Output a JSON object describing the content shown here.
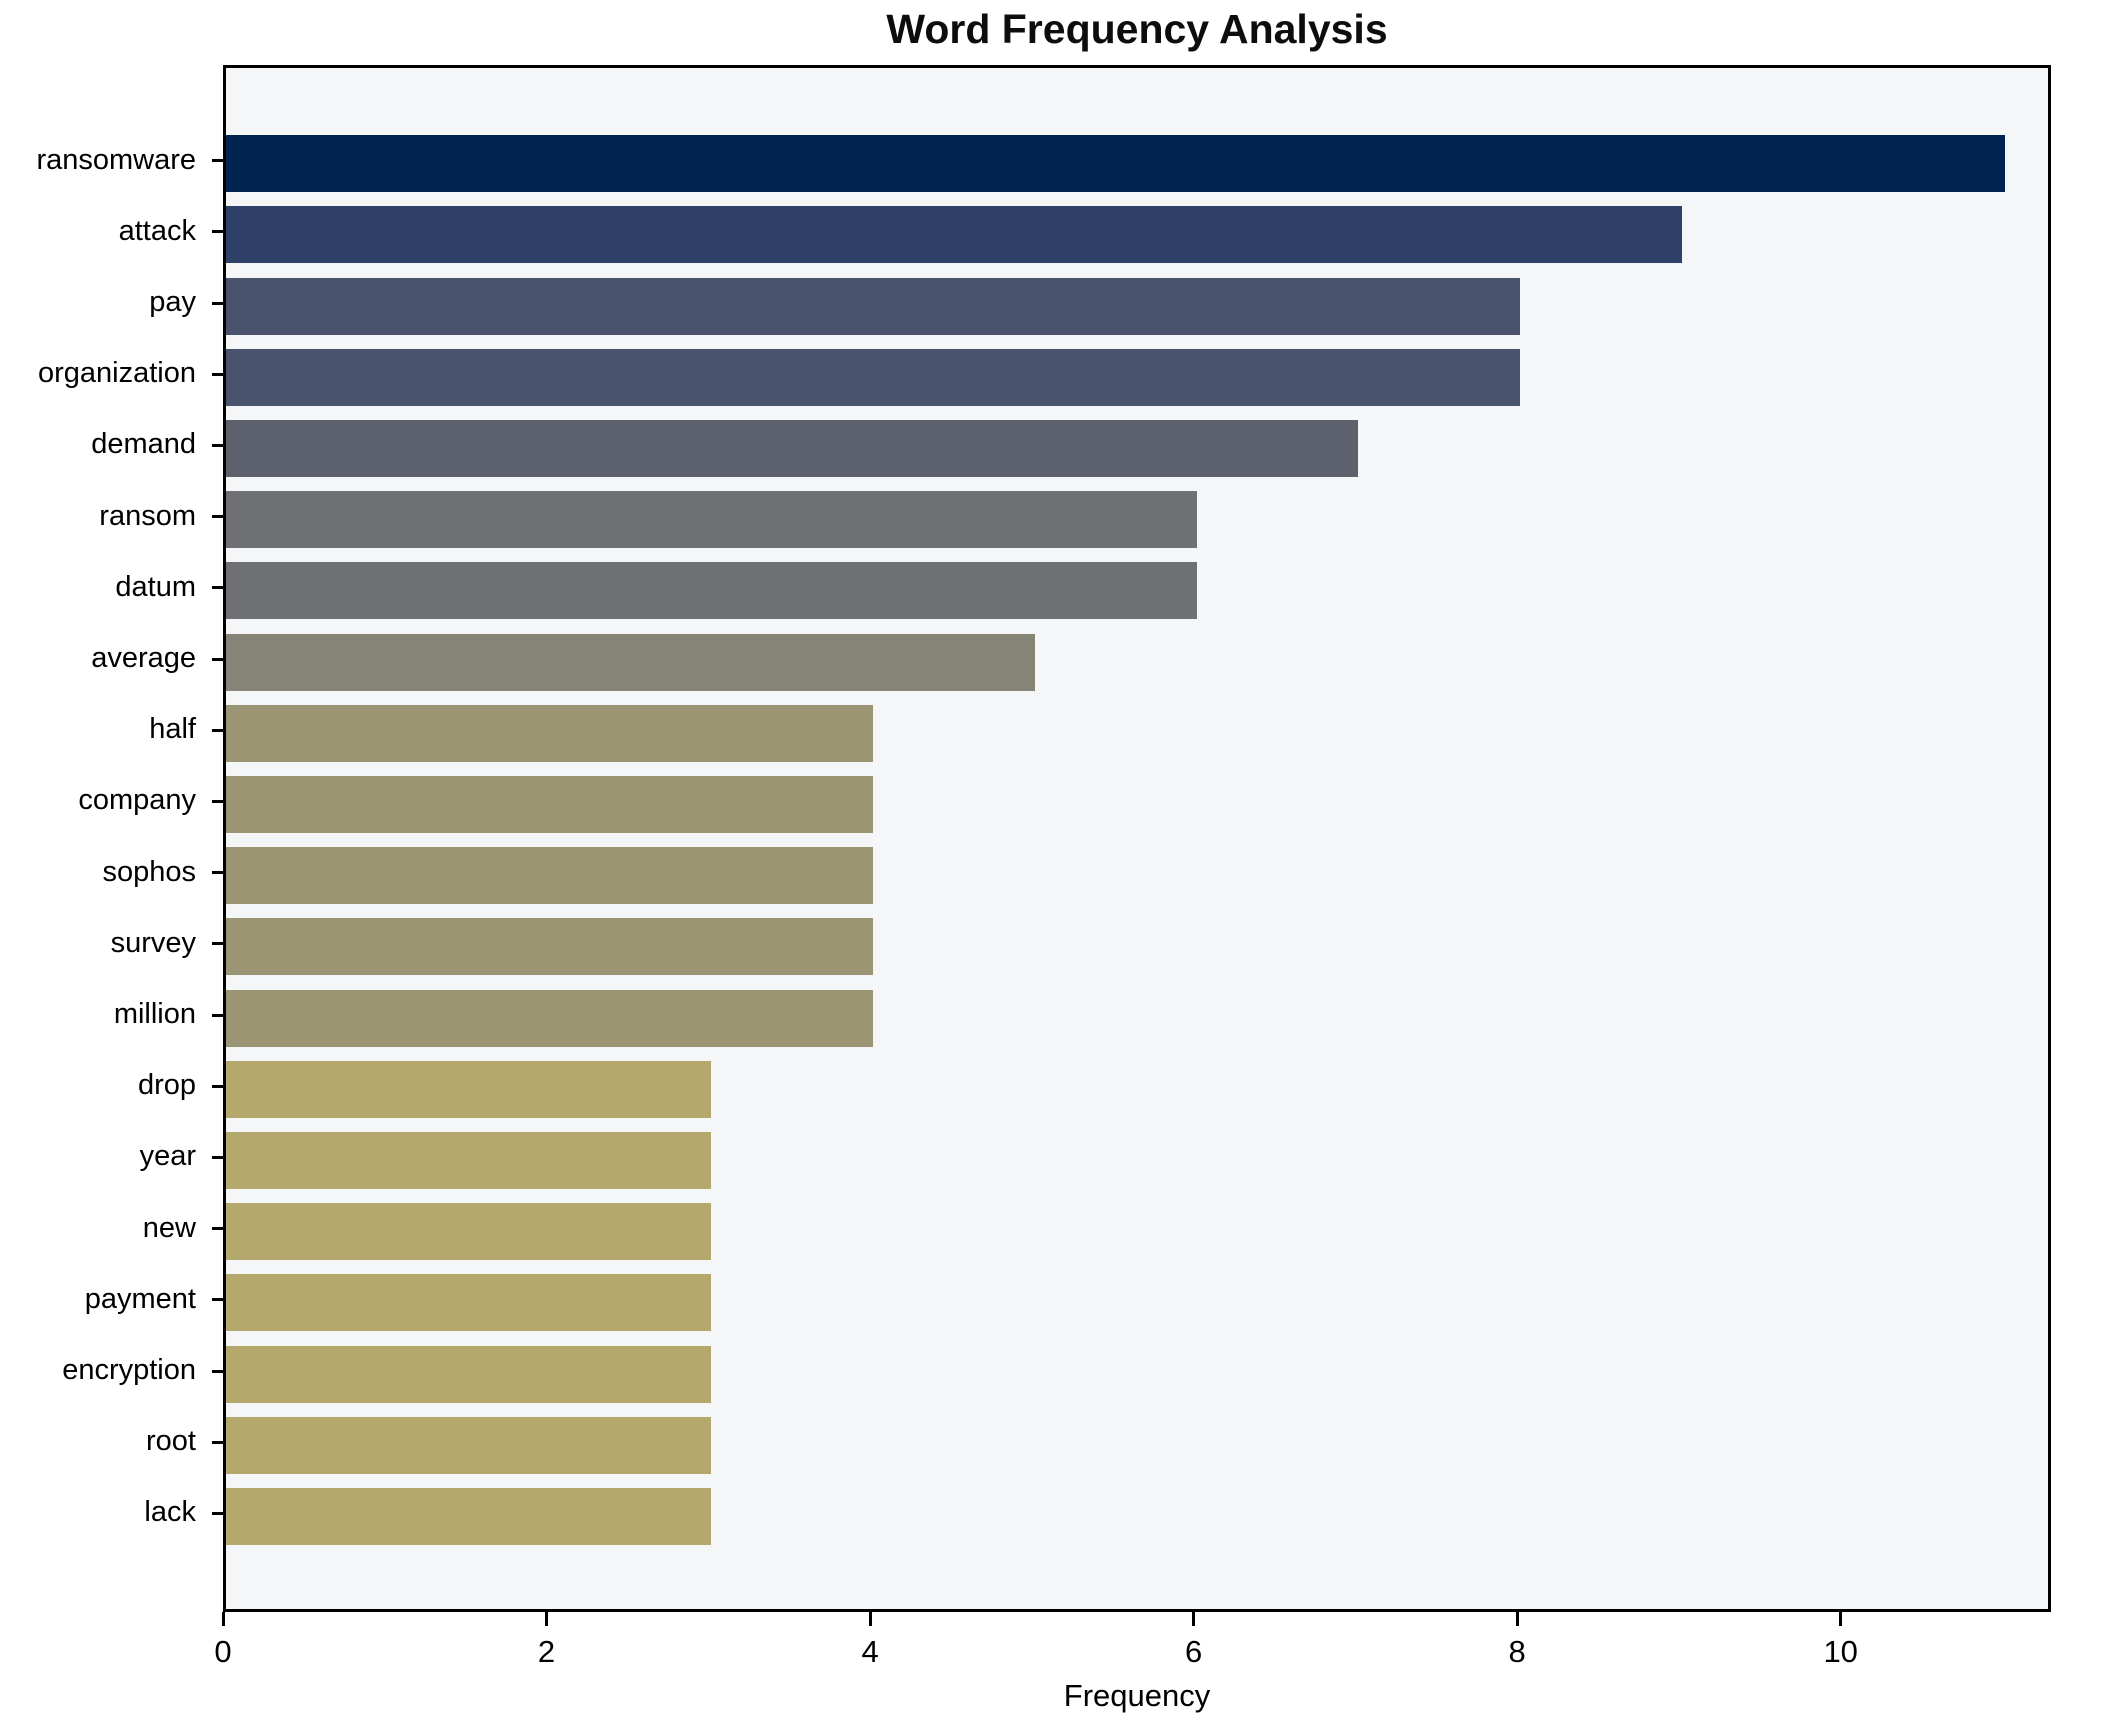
{
  "chart_data": {
    "type": "bar",
    "orientation": "horizontal",
    "title": "Word Frequency Analysis",
    "xlabel": "Frequency",
    "ylabel": "",
    "categories": [
      "ransomware",
      "attack",
      "pay",
      "organization",
      "demand",
      "ransom",
      "datum",
      "average",
      "half",
      "company",
      "sophos",
      "survey",
      "million",
      "drop",
      "year",
      "new",
      "payment",
      "encryption",
      "root",
      "lack"
    ],
    "values": [
      11,
      9,
      8,
      8,
      7,
      6,
      6,
      5,
      4,
      4,
      4,
      4,
      4,
      3,
      3,
      3,
      3,
      3,
      3,
      3
    ],
    "bar_colors": [
      "#00234f",
      "#2f4169",
      "#4a536e",
      "#4a536e",
      "#5d616e",
      "#6f7073",
      "#6f7073",
      "#858476",
      "#9c9574",
      "#9c9574",
      "#9c9574",
      "#9c9574",
      "#9c9574",
      "#b4a86c",
      "#b4a86c",
      "#b4a86c",
      "#b4a86c",
      "#b4a86c",
      "#b4a86c",
      "#b4a86c"
    ],
    "xticks": [
      0,
      2,
      4,
      6,
      8,
      10
    ],
    "xlim": [
      0,
      11.3
    ],
    "grid": false,
    "legend": null,
    "plot_background": "#f5f6f7",
    "spine_color": "#000000"
  }
}
